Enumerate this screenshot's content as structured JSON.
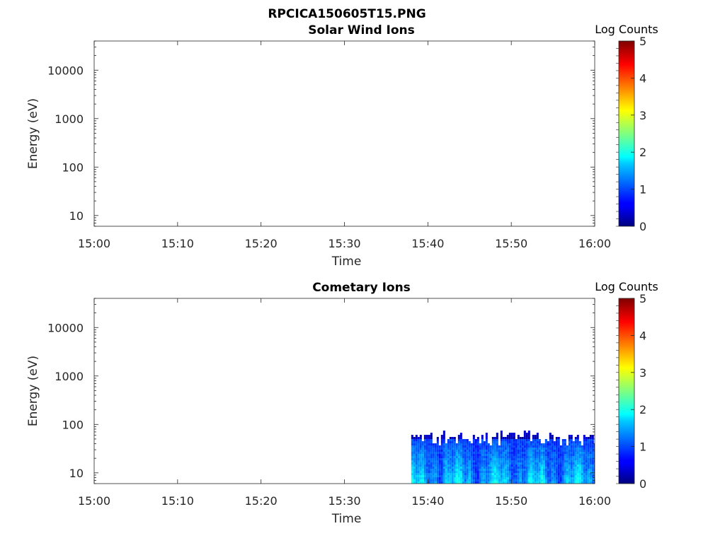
{
  "figure_title": "RPCICA150605T15.PNG",
  "chart_data": [
    {
      "type": "heatmap",
      "title": "Solar Wind Ions",
      "xlabel": "Time",
      "ylabel": "Energy (eV)",
      "x_ticks": [
        "15:00",
        "15:10",
        "15:20",
        "15:30",
        "15:40",
        "15:50",
        "16:00"
      ],
      "xlim": [
        "15:00",
        "16:00"
      ],
      "y_scale": "log",
      "y_ticks": [
        10,
        100,
        1000,
        10000
      ],
      "y_tick_labels": [
        "10",
        "100",
        "1000",
        "10000"
      ],
      "ylim": [
        6,
        40000
      ],
      "colorbar": {
        "label": "Log Counts",
        "range": [
          0,
          5
        ],
        "ticks": [
          "0",
          "1",
          "2",
          "3",
          "4",
          "5"
        ],
        "colormap": "jet"
      },
      "data_extent": null
    },
    {
      "type": "heatmap",
      "title": "Cometary Ions",
      "xlabel": "Time",
      "ylabel": "Energy (eV)",
      "x_ticks": [
        "15:00",
        "15:10",
        "15:20",
        "15:30",
        "15:40",
        "15:50",
        "16:00"
      ],
      "xlim": [
        "15:00",
        "16:00"
      ],
      "y_scale": "log",
      "y_ticks": [
        10,
        100,
        1000,
        10000
      ],
      "y_tick_labels": [
        "10",
        "100",
        "1000",
        "10000"
      ],
      "ylim": [
        6,
        40000
      ],
      "colorbar": {
        "label": "Log Counts",
        "range": [
          0,
          5
        ],
        "ticks": [
          "0",
          "1",
          "2",
          "3",
          "4",
          "5"
        ],
        "colormap": "jet"
      },
      "data_extent": {
        "time_start": "15:38",
        "time_end": "16:00",
        "energy_min": 6,
        "energy_max": 80,
        "typical_log_counts": [
          0.8,
          1.8
        ]
      }
    }
  ]
}
